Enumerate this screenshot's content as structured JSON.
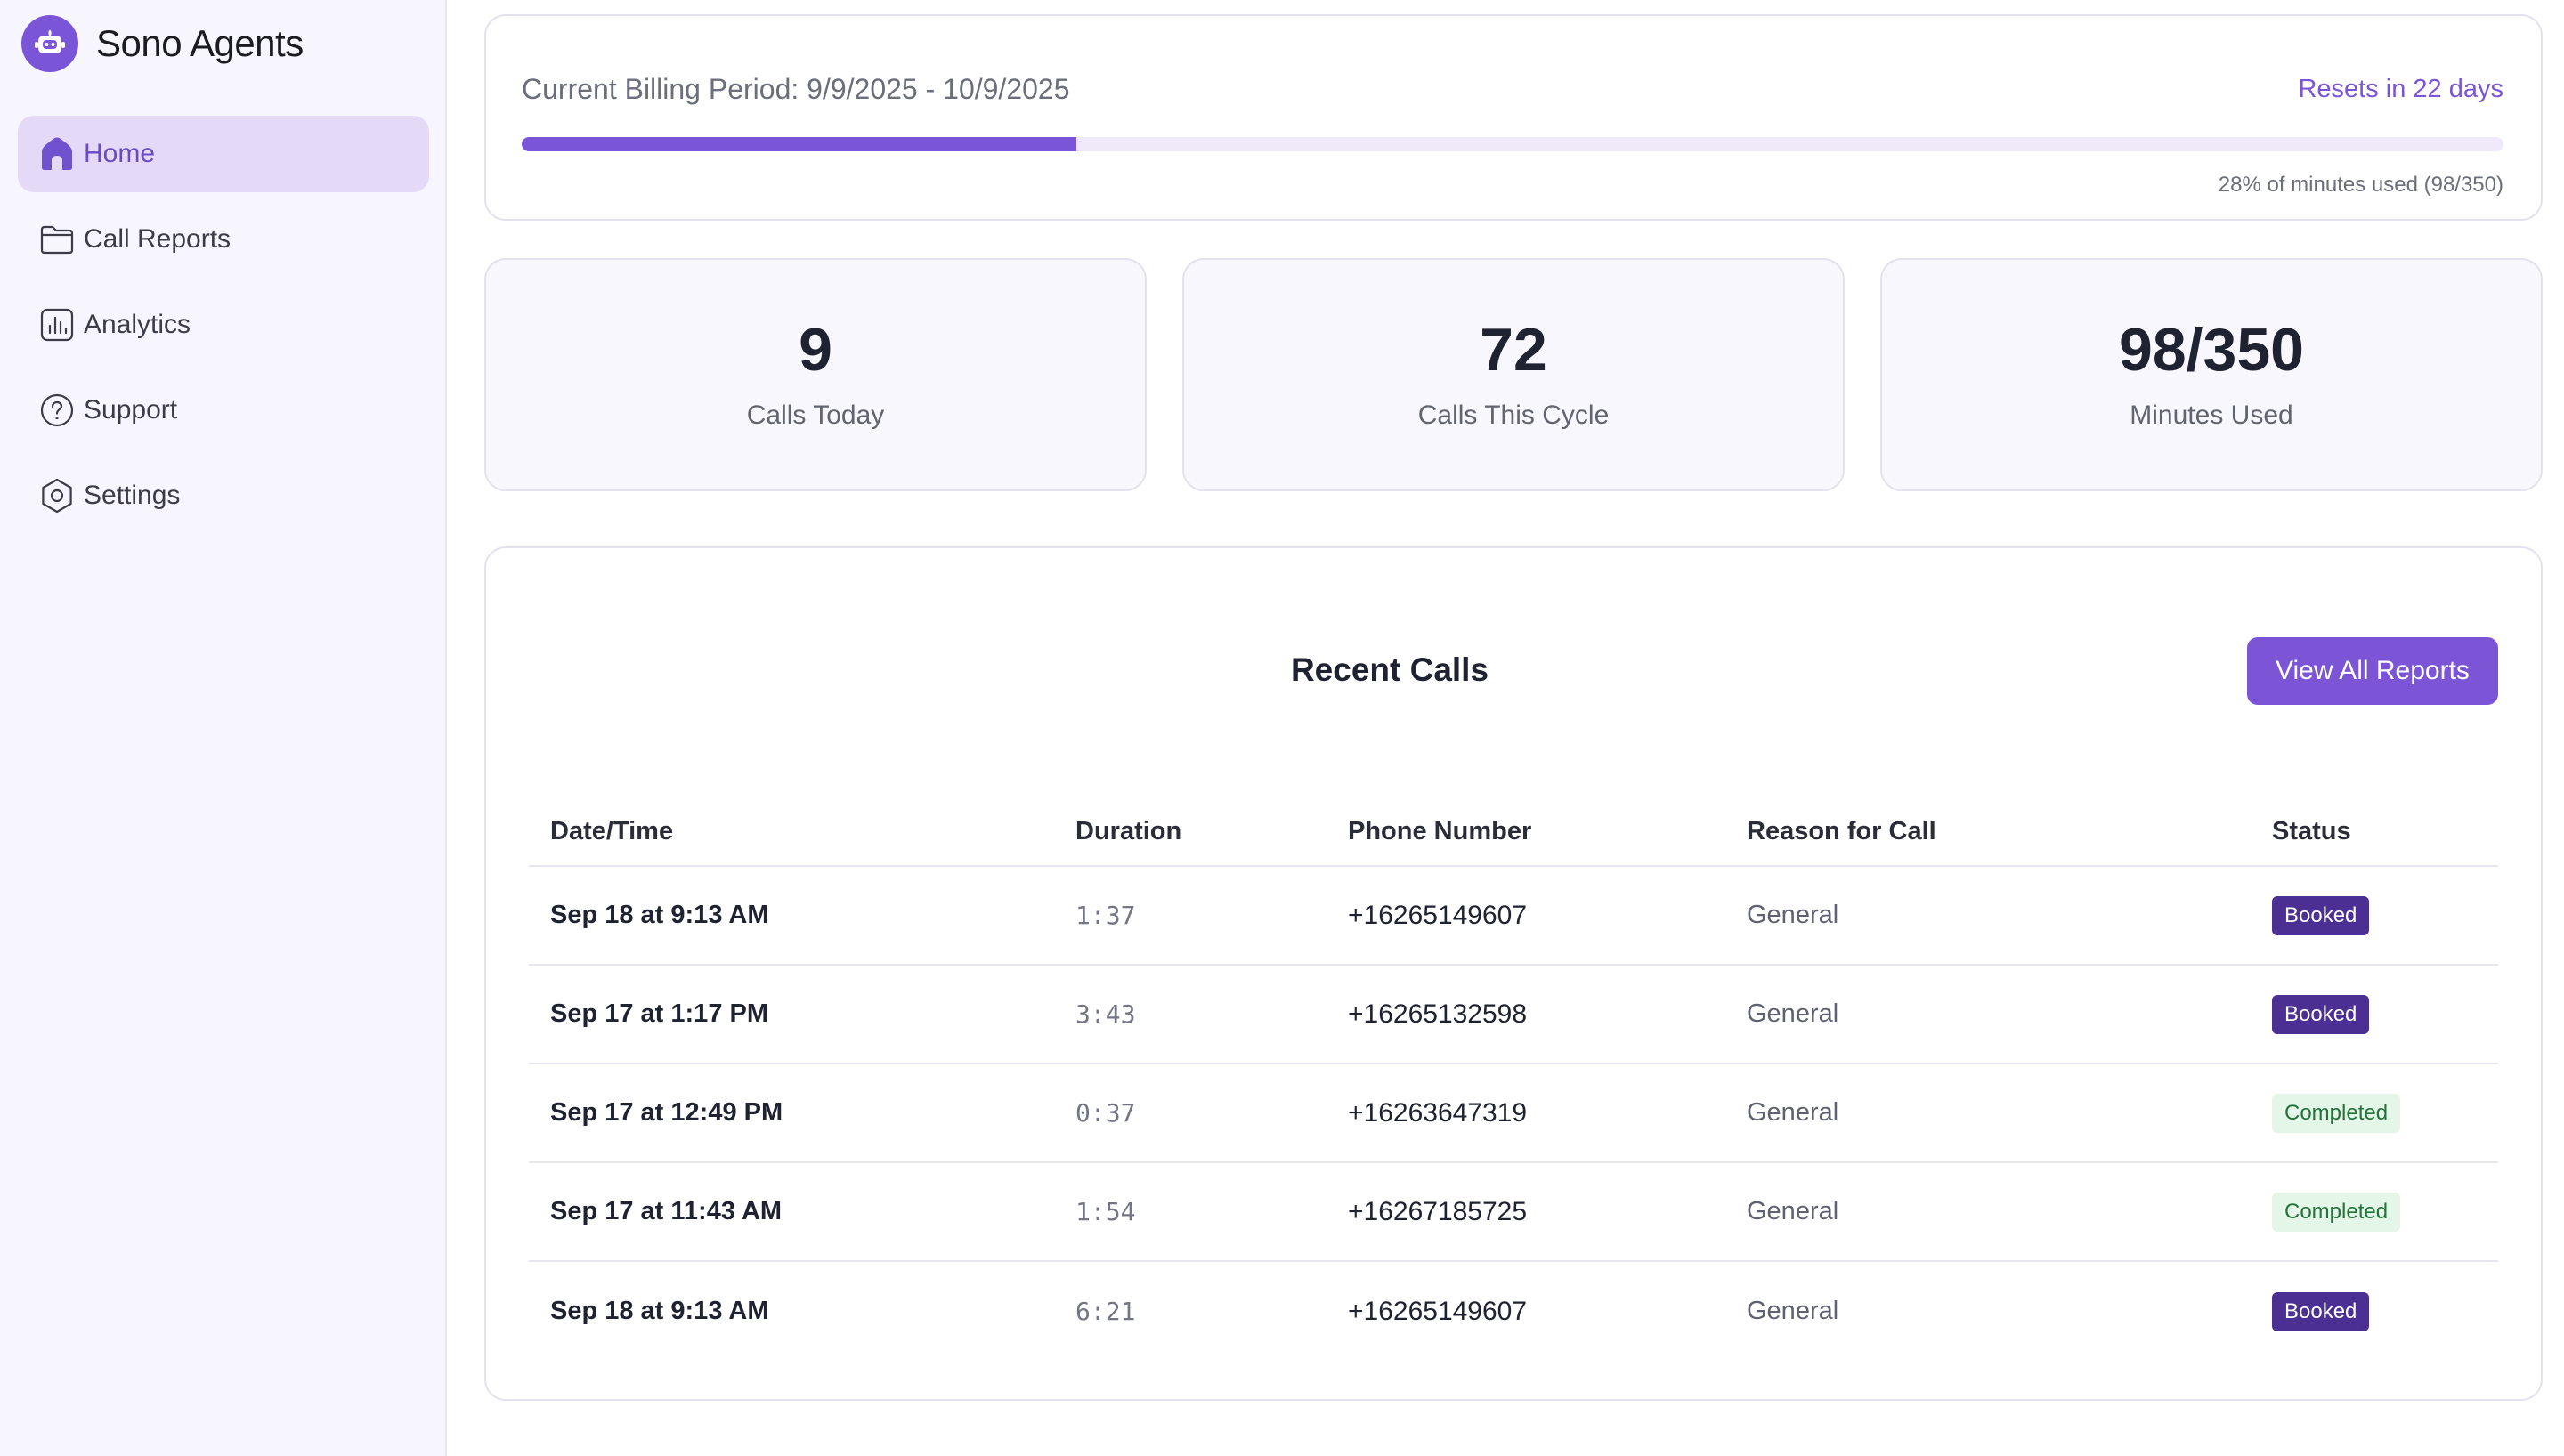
{
  "app": {
    "name": "Sono Agents",
    "logo_icon": "robot-icon"
  },
  "sidebar": {
    "items": [
      {
        "label": "Home",
        "icon": "home-icon",
        "active": true
      },
      {
        "label": "Call Reports",
        "icon": "folder-icon",
        "active": false
      },
      {
        "label": "Analytics",
        "icon": "bar-chart-icon",
        "active": false
      },
      {
        "label": "Support",
        "icon": "help-circle-icon",
        "active": false
      },
      {
        "label": "Settings",
        "icon": "gear-icon",
        "active": false
      }
    ]
  },
  "billing": {
    "title": "Current Billing Period: 9/9/2025 - 10/9/2025",
    "reset_text": "Resets in 22 days",
    "usage_text": "28% of minutes used (98/350)",
    "progress_fraction": 0.28
  },
  "stats": [
    {
      "value": "9",
      "label": "Calls Today"
    },
    {
      "value": "72",
      "label": "Calls This Cycle"
    },
    {
      "value": "98/350",
      "label": "Minutes Used"
    }
  ],
  "recent_calls": {
    "title": "Recent Calls",
    "view_all_label": "View All Reports",
    "columns": [
      "Date/Time",
      "Duration",
      "Phone Number",
      "Reason for Call",
      "Status"
    ],
    "rows": [
      {
        "datetime": "Sep 18 at 9:13 AM",
        "duration": "1:37",
        "phone": "+16265149607",
        "reason": "General",
        "status": "Booked"
      },
      {
        "datetime": "Sep 17 at 1:17 PM",
        "duration": "3:43",
        "phone": "+16265132598",
        "reason": "General",
        "status": "Booked"
      },
      {
        "datetime": "Sep 17 at 12:49 PM",
        "duration": "0:37",
        "phone": "+16263647319",
        "reason": "General",
        "status": "Completed"
      },
      {
        "datetime": "Sep 17 at 11:43 AM",
        "duration": "1:54",
        "phone": "+16267185725",
        "reason": "General",
        "status": "Completed"
      },
      {
        "datetime": "Sep 18 at 9:13 AM",
        "duration": "6:21",
        "phone": "+16265149607",
        "reason": "General",
        "status": "Booked"
      }
    ]
  },
  "colors": {
    "accent": "#7b55d6",
    "booked_badge": "#4b2f93",
    "completed_badge_bg": "#e3f6e7",
    "completed_badge_text": "#24733b",
    "sidebar_bg": "#f7f5fd",
    "active_nav_bg": "#e4daf8"
  }
}
